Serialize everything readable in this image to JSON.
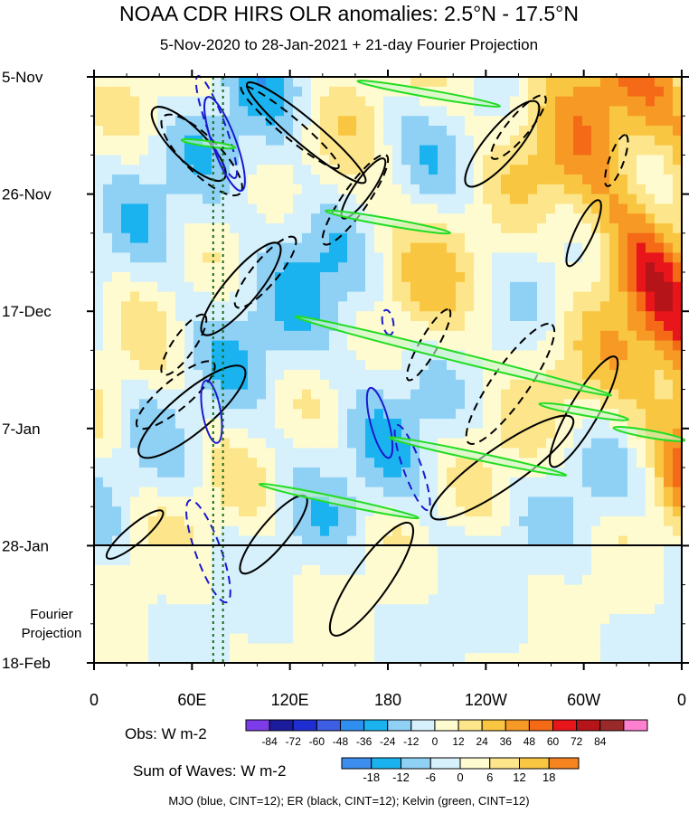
{
  "title": "NOAA CDR HIRS OLR anomalies: 2.5°N - 17.5°N",
  "subtitle": "5-Nov-2020 to 28-Jan-2021 + 21-day Fourier Projection",
  "chart_data": {
    "type": "heatmap",
    "title": "NOAA CDR HIRS OLR anomalies: 2.5°N - 17.5°N",
    "subtitle": "5-Nov-2020 to 28-Jan-2021 + 21-day Fourier Projection",
    "x_axis": {
      "ticks": [
        "0",
        "60E",
        "120E",
        "180",
        "120W",
        "60W",
        "0"
      ],
      "range_deg_east": [
        0,
        360
      ]
    },
    "y_axis": {
      "ticks": [
        "5-Nov",
        "26-Nov",
        "17-Dec",
        "7-Jan",
        "28-Jan",
        "18-Feb"
      ],
      "range_days": [
        0,
        105
      ],
      "reversed": true
    },
    "projection_label": [
      "Fourier",
      "Projection"
    ],
    "observation_end": "28-Jan",
    "reference_lines_deg_east": [
      73,
      79
    ],
    "obs_colorbar": {
      "label": "Obs: W m-2",
      "levels": [
        -84,
        -72,
        -60,
        -48,
        -36,
        -24,
        -12,
        0,
        12,
        24,
        36,
        48,
        60,
        72,
        84
      ],
      "colors": [
        "#7e3ce8",
        "#1b1c9c",
        "#1f2ed2",
        "#3e5ee3",
        "#2f8ef0",
        "#1ab3f0",
        "#8fd0f5",
        "#d6f1fb",
        "#fffbd0",
        "#fce58a",
        "#f9c641",
        "#f79a25",
        "#f46a17",
        "#e8151b",
        "#b51418",
        "#9a2a2a",
        "#ff7fd0"
      ]
    },
    "waves_colorbar": {
      "label": "Sum of Waves: W m-2",
      "levels": [
        -18,
        -12,
        -6,
        0,
        6,
        12,
        18
      ],
      "colors": [
        "#3e8ef0",
        "#1ab3f0",
        "#8fd0f5",
        "#d6f1fb",
        "#fffbd0",
        "#fce58a",
        "#f9c641",
        "#f7851f"
      ]
    },
    "contours": [
      {
        "name": "MJO",
        "color": "blue",
        "cint": 12
      },
      {
        "name": "ER",
        "color": "black",
        "cint": 12
      },
      {
        "name": "Kelvin",
        "color": "green",
        "cint": 12
      }
    ]
  },
  "colors": {
    "mjo": "#1a1ad0",
    "er": "#000000",
    "kelvin": "#22dd22",
    "kelvin_fill": "#c8f5c8",
    "ref_line": "#1a6a1a"
  },
  "caption": "MJO (blue, CINT=12); ER (black, CINT=12); Kelvin (green, CINT=12)"
}
